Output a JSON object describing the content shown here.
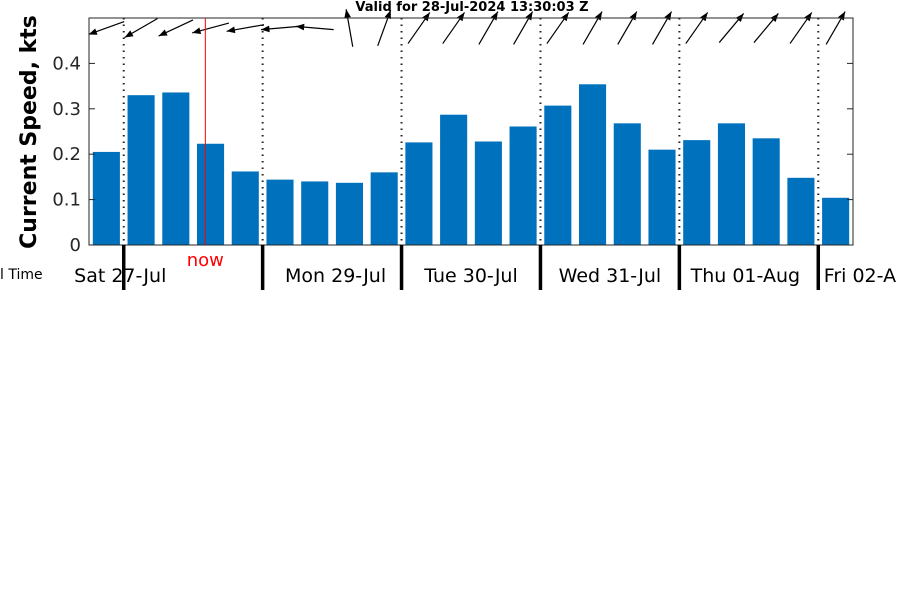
{
  "chart_data": {
    "type": "bar",
    "title": "Valid for 28-Jul-2024 13:30:03 Z",
    "ylabel": "Current Speed, kts",
    "xlabel_fragment": "l Time",
    "ylim": [
      0,
      0.5
    ],
    "yticks": [
      0,
      0.1,
      0.2,
      0.3,
      0.4
    ],
    "ytick_labels": [
      "0",
      "0.1",
      "0.2",
      "0.3",
      "0.4"
    ],
    "xlim": [
      0,
      22
    ],
    "values": [
      0.205,
      0.33,
      0.336,
      0.223,
      0.162,
      0.144,
      0.14,
      0.137,
      0.16,
      0.226,
      0.287,
      0.228,
      0.261,
      0.307,
      0.354,
      0.268,
      0.21,
      0.231,
      0.268,
      0.235,
      0.148,
      0.104
    ],
    "bar_color": "#0072bd",
    "direction_deg": [
      250,
      240,
      245,
      255,
      260,
      265,
      275,
      350,
      20,
      35,
      35,
      30,
      30,
      35,
      30,
      30,
      30,
      35,
      40,
      40,
      35,
      30
    ],
    "day_boundaries": [
      1,
      5,
      9,
      13,
      17,
      21
    ],
    "day_labels": [
      {
        "text": "Sat 27-Jul",
        "x": 0.9
      },
      {
        "text": "Mon 29-Jul",
        "x": 7.1
      },
      {
        "text": "Tue 30-Jul",
        "x": 11.0
      },
      {
        "text": "Wed 31-Jul",
        "x": 15.0
      },
      {
        "text": "Thu 01-Aug",
        "x": 18.9
      },
      {
        "text": "Fri 02-A",
        "x": 22.2
      }
    ],
    "now": {
      "label": "now",
      "x": 3.35,
      "color": "#ff0000"
    },
    "grid": false
  }
}
